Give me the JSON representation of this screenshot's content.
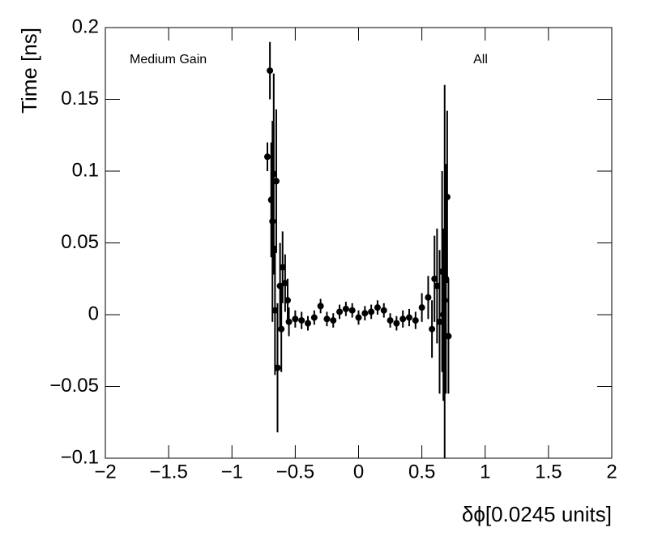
{
  "chart_data": {
    "type": "scatter",
    "xlabel": "δϕ[0.0245 units]",
    "ylabel": "Time [ns]",
    "annotations": [
      "Medium Gain",
      "All"
    ],
    "color": "#000000",
    "xlim": [
      -2,
      2
    ],
    "xticks": [
      {
        "value": -2,
        "label": "−2"
      },
      {
        "value": -1.5,
        "label": "−1.5"
      },
      {
        "value": -1,
        "label": "−1"
      },
      {
        "value": -0.5,
        "label": "−0.5"
      },
      0,
      0.5,
      1,
      1.5,
      2
    ],
    "ylim": [
      -0.1,
      0.2
    ],
    "yticks": [
      {
        "value": -0.1,
        "label": "−0.1"
      },
      {
        "value": -0.05,
        "label": "−0.05"
      },
      0,
      0.05,
      0.1,
      0.15,
      0.2
    ],
    "x": [
      -0.72,
      -0.7,
      -0.69,
      -0.68,
      -0.67,
      -0.66,
      -0.65,
      -0.64,
      -0.62,
      -0.61,
      -0.6,
      -0.58,
      -0.56,
      -0.55,
      -0.5,
      -0.45,
      -0.4,
      -0.35,
      -0.3,
      -0.25,
      -0.2,
      -0.15,
      -0.1,
      -0.05,
      0,
      0.05,
      0.1,
      0.15,
      0.2,
      0.25,
      0.3,
      0.35,
      0.4,
      0.45,
      0.5,
      0.55,
      0.58,
      0.6,
      0.62,
      0.64,
      0.66,
      0.67,
      0.68,
      0.69,
      0.7,
      0.71
    ],
    "values": [
      0.11,
      0.17,
      0.08,
      0.065,
      0.098,
      0.003,
      0.093,
      -0.037,
      0.02,
      -0.01,
      0.033,
      0.022,
      0.01,
      -0.005,
      -0.003,
      -0.004,
      -0.006,
      -0.002,
      0.006,
      -0.003,
      -0.004,
      0.002,
      0.004,
      0.003,
      -0.002,
      0.001,
      0.002,
      0.005,
      0.003,
      -0.004,
      -0.006,
      -0.003,
      -0.002,
      -0.004,
      0.005,
      0.012,
      -0.01,
      0.025,
      0.02,
      -0.005,
      0.03,
      0.0,
      0.01,
      0.025,
      0.082,
      -0.015
    ],
    "errors": [
      0.01,
      0.02,
      0.04,
      0.07,
      0.07,
      0.045,
      0.05,
      0.045,
      0.03,
      0.03,
      0.025,
      0.02,
      0.015,
      0.01,
      0.006,
      0.006,
      0.005,
      0.005,
      0.005,
      0.005,
      0.005,
      0.005,
      0.005,
      0.005,
      0.005,
      0.005,
      0.005,
      0.005,
      0.005,
      0.005,
      0.005,
      0.006,
      0.006,
      0.006,
      0.01,
      0.015,
      0.02,
      0.03,
      0.04,
      0.05,
      0.07,
      0.06,
      0.15,
      0.08,
      0.06,
      0.04
    ]
  }
}
